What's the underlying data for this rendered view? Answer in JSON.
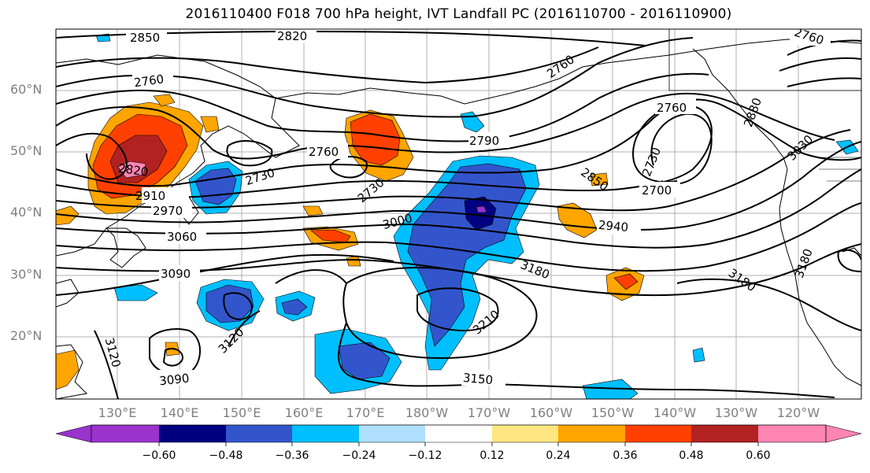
{
  "title": "2016110400 F018 700 hPa height, IVT Landfall PC (2016110700 - 2016110900)",
  "map": {
    "latitude_labels": [
      "60°N",
      "50°N",
      "40°N",
      "30°N",
      "20°N"
    ],
    "longitude_labels": [
      "130°E",
      "140°E",
      "150°E",
      "160°E",
      "170°E",
      "180°W",
      "170°W",
      "160°W",
      "150°W",
      "140°W",
      "130°W",
      "120°W"
    ],
    "gridlines": true,
    "contour_color": "#000000",
    "contour_labels": [
      "2850",
      "2820",
      "2760",
      "2760",
      "2880",
      "2760",
      "3030",
      "2760",
      "2790",
      "2730",
      "2730",
      "2700",
      "2820",
      "2730",
      "2850",
      "3000",
      "2910",
      "2970",
      "2940",
      "3060",
      "3090",
      "3180",
      "3180",
      "3120",
      "3210",
      "3120",
      "3180",
      "3090",
      "3150"
    ]
  },
  "colorbar": {
    "colors": [
      "#9933cc",
      "#000080",
      "#3355cc",
      "#00bfff",
      "#b0e0ff",
      "#ffffff",
      "#ffe680",
      "#ffa500",
      "#ff4000",
      "#b22222",
      "#ff85b3"
    ],
    "tick_labels": [
      "−0.60",
      "−0.48",
      "−0.36",
      "−0.24",
      "−0.12",
      "0.12",
      "0.24",
      "0.36",
      "0.48",
      "0.60"
    ],
    "extend": "both"
  }
}
